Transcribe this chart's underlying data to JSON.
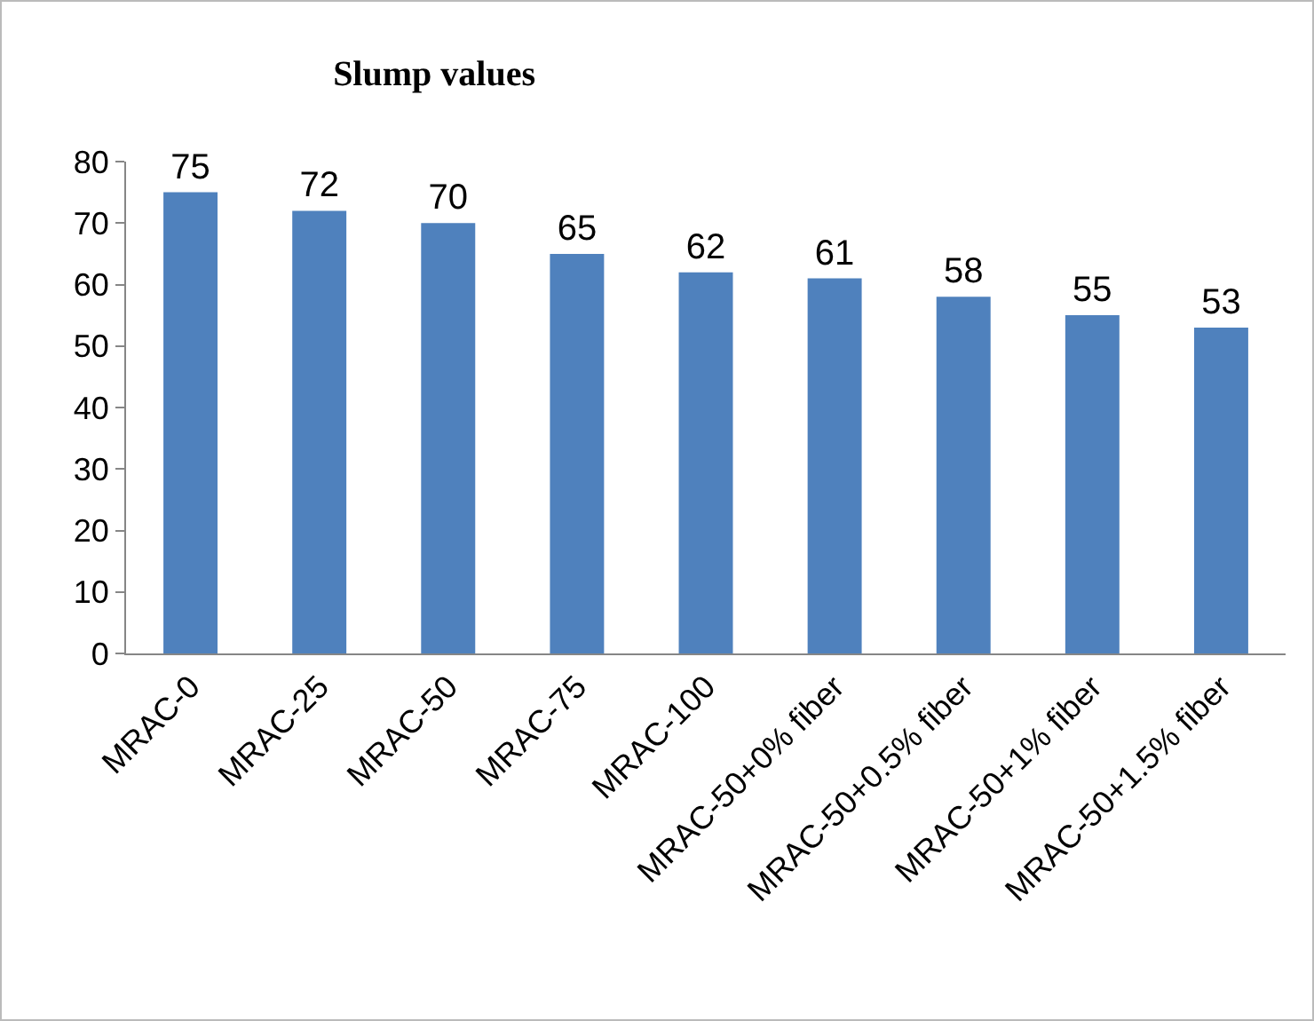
{
  "chart_data": {
    "type": "bar",
    "title": "Slump values",
    "categories": [
      "MRAC-0",
      "MRAC-25",
      "MRAC-50",
      "MRAC-75",
      "MRAC-100",
      "MRAC-50+0% fiber",
      "MRAC-50+0.5% fiber",
      "MRAC-50+1% fiber",
      "MRAC-50+1.5% fiber"
    ],
    "values": [
      75,
      72,
      70,
      65,
      62,
      61,
      58,
      55,
      53
    ],
    "color": "#4f81bd",
    "ylim": [
      0,
      80
    ],
    "yticks": [
      0,
      10,
      20,
      30,
      40,
      50,
      60,
      70,
      80
    ],
    "grid": false,
    "data_labels": true
  }
}
